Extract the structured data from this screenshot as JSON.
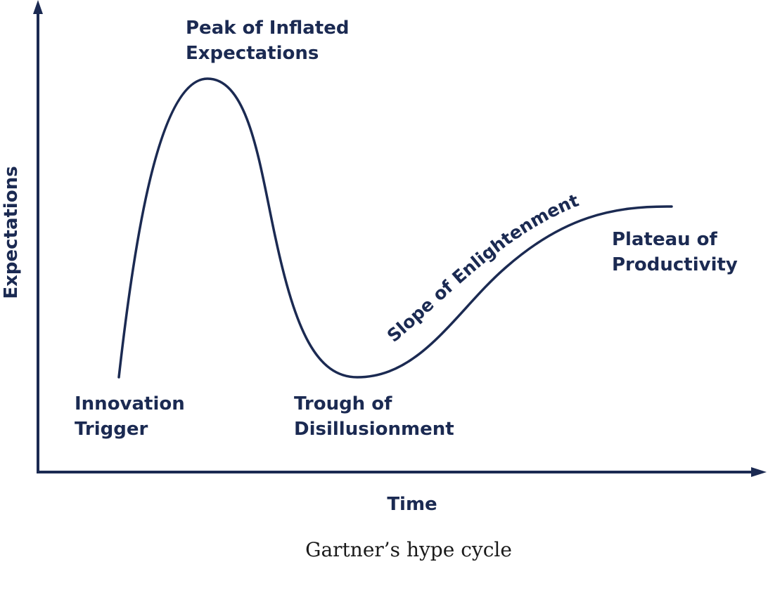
{
  "axes": {
    "y_label": "Expectations",
    "x_label": "Time"
  },
  "phases": {
    "innovation_trigger": [
      "Innovation",
      "Trigger"
    ],
    "peak": [
      "Peak of Inflated",
      "Expectations"
    ],
    "trough": [
      "Trough of",
      "Disillusionment"
    ],
    "slope": "Slope of Enlightenment",
    "plateau": [
      "Plateau of",
      "Productivity"
    ]
  },
  "caption": "Gartner’s hype cycle",
  "colors": {
    "ink": "#1b2a52",
    "caption": "#1a1a1a"
  }
}
